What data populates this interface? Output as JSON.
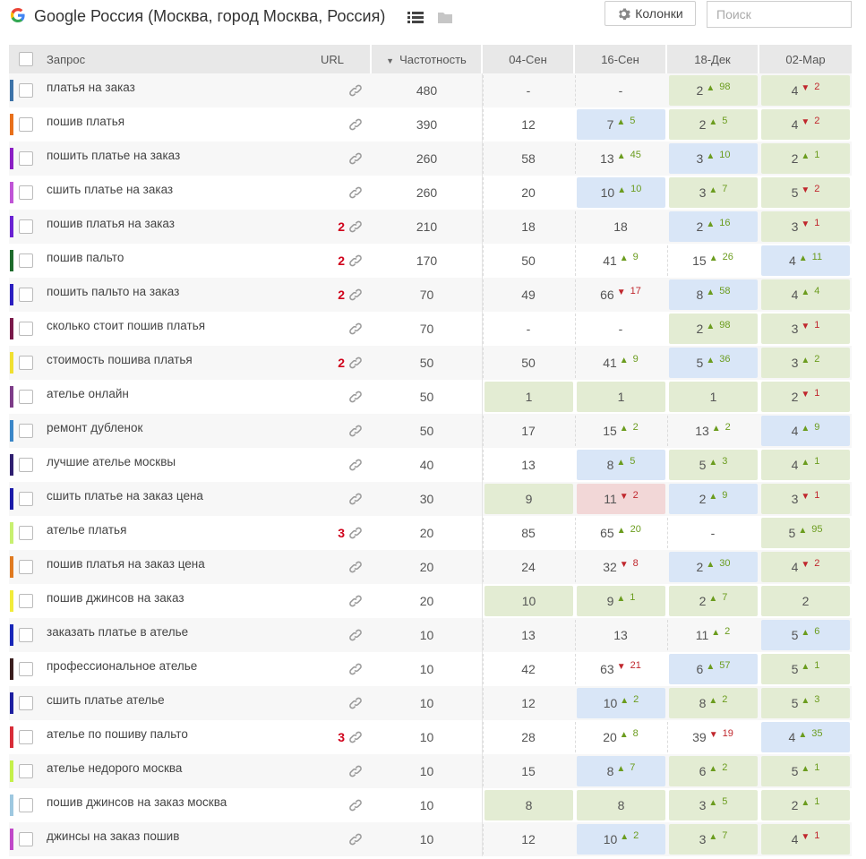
{
  "header": {
    "title": "Google Россия (Москва, город Москва, Россия)",
    "columns_button": "Колонки",
    "search_placeholder": "Поиск"
  },
  "colors": {
    "up": "#6b9c1e",
    "down": "#c0272d",
    "green_bg": "#e3ecd3",
    "blue_bg": "#d9e6f7",
    "red_bg": "#f2d7d7",
    "url_count": "#d0021b"
  },
  "table": {
    "headers": {
      "query": "Запрос",
      "url": "URL",
      "freq": "Частотность",
      "sort_icon": "▼",
      "dates": [
        "04-Сен",
        "16-Сен",
        "18-Дек",
        "02-Мар"
      ]
    },
    "rows": [
      {
        "q": "платья на заказ",
        "color": "#3d73a8",
        "url": "",
        "freq": "480",
        "c": [
          {
            "v": "-",
            "bg": "",
            "d": "",
            "t": ""
          },
          {
            "v": "-",
            "bg": "",
            "d": "",
            "t": ""
          },
          {
            "v": "2",
            "bg": "green",
            "d": "up",
            "t": "98"
          },
          {
            "v": "4",
            "bg": "green",
            "d": "dn",
            "t": "2"
          }
        ]
      },
      {
        "q": "пошив платья",
        "color": "#e8701a",
        "url": "",
        "freq": "390",
        "c": [
          {
            "v": "12",
            "bg": "",
            "d": "",
            "t": ""
          },
          {
            "v": "7",
            "bg": "blue",
            "d": "up",
            "t": "5"
          },
          {
            "v": "2",
            "bg": "green",
            "d": "up",
            "t": "5"
          },
          {
            "v": "4",
            "bg": "green",
            "d": "dn",
            "t": "2"
          }
        ]
      },
      {
        "q": "пошить платье на заказ",
        "color": "#8b1fc4",
        "url": "",
        "freq": "260",
        "c": [
          {
            "v": "58",
            "bg": "",
            "d": "",
            "t": ""
          },
          {
            "v": "13",
            "bg": "",
            "d": "up",
            "t": "45"
          },
          {
            "v": "3",
            "bg": "blue",
            "d": "up",
            "t": "10"
          },
          {
            "v": "2",
            "bg": "green",
            "d": "up",
            "t": "1"
          }
        ]
      },
      {
        "q": "сшить платье на заказ",
        "color": "#c055d6",
        "url": "",
        "freq": "260",
        "c": [
          {
            "v": "20",
            "bg": "",
            "d": "",
            "t": ""
          },
          {
            "v": "10",
            "bg": "blue",
            "d": "up",
            "t": "10"
          },
          {
            "v": "3",
            "bg": "green",
            "d": "up",
            "t": "7"
          },
          {
            "v": "5",
            "bg": "green",
            "d": "dn",
            "t": "2"
          }
        ]
      },
      {
        "q": "пошив платья на заказ",
        "color": "#6a21d2",
        "url": "2",
        "freq": "210",
        "c": [
          {
            "v": "18",
            "bg": "",
            "d": "",
            "t": ""
          },
          {
            "v": "18",
            "bg": "",
            "d": "",
            "t": ""
          },
          {
            "v": "2",
            "bg": "blue",
            "d": "up",
            "t": "16"
          },
          {
            "v": "3",
            "bg": "green",
            "d": "dn",
            "t": "1"
          }
        ]
      },
      {
        "q": "пошив пальто",
        "color": "#1e6b2c",
        "url": "2",
        "freq": "170",
        "c": [
          {
            "v": "50",
            "bg": "",
            "d": "",
            "t": ""
          },
          {
            "v": "41",
            "bg": "",
            "d": "up",
            "t": "9"
          },
          {
            "v": "15",
            "bg": "",
            "d": "up",
            "t": "26"
          },
          {
            "v": "4",
            "bg": "blue",
            "d": "up",
            "t": "11"
          }
        ]
      },
      {
        "q": "пошить пальто на заказ",
        "color": "#2b1ec0",
        "url": "2",
        "freq": "70",
        "c": [
          {
            "v": "49",
            "bg": "",
            "d": "",
            "t": ""
          },
          {
            "v": "66",
            "bg": "",
            "d": "dn",
            "t": "17"
          },
          {
            "v": "8",
            "bg": "blue",
            "d": "up",
            "t": "58"
          },
          {
            "v": "4",
            "bg": "green",
            "d": "up",
            "t": "4"
          }
        ]
      },
      {
        "q": "сколько стоит пошив платья",
        "color": "#7a1a4a",
        "url": "",
        "freq": "70",
        "c": [
          {
            "v": "-",
            "bg": "",
            "d": "",
            "t": ""
          },
          {
            "v": "-",
            "bg": "",
            "d": "",
            "t": ""
          },
          {
            "v": "2",
            "bg": "green",
            "d": "up",
            "t": "98"
          },
          {
            "v": "3",
            "bg": "green",
            "d": "dn",
            "t": "1"
          }
        ]
      },
      {
        "q": "стоимость пошива платья",
        "color": "#f0e030",
        "url": "2",
        "freq": "50",
        "c": [
          {
            "v": "50",
            "bg": "",
            "d": "",
            "t": ""
          },
          {
            "v": "41",
            "bg": "",
            "d": "up",
            "t": "9"
          },
          {
            "v": "5",
            "bg": "blue",
            "d": "up",
            "t": "36"
          },
          {
            "v": "3",
            "bg": "green",
            "d": "up",
            "t": "2"
          }
        ]
      },
      {
        "q": "ателье онлайн",
        "color": "#7d3c88",
        "url": "",
        "freq": "50",
        "c": [
          {
            "v": "1",
            "bg": "green",
            "d": "",
            "t": ""
          },
          {
            "v": "1",
            "bg": "green",
            "d": "",
            "t": ""
          },
          {
            "v": "1",
            "bg": "green",
            "d": "",
            "t": ""
          },
          {
            "v": "2",
            "bg": "green",
            "d": "dn",
            "t": "1"
          }
        ]
      },
      {
        "q": "ремонт дубленок",
        "color": "#3a86c8",
        "url": "",
        "freq": "50",
        "c": [
          {
            "v": "17",
            "bg": "",
            "d": "",
            "t": ""
          },
          {
            "v": "15",
            "bg": "",
            "d": "up",
            "t": "2"
          },
          {
            "v": "13",
            "bg": "",
            "d": "up",
            "t": "2"
          },
          {
            "v": "4",
            "bg": "blue",
            "d": "up",
            "t": "9"
          }
        ]
      },
      {
        "q": "лучшие ателье москвы",
        "color": "#2f1f70",
        "url": "",
        "freq": "40",
        "c": [
          {
            "v": "13",
            "bg": "",
            "d": "",
            "t": ""
          },
          {
            "v": "8",
            "bg": "blue",
            "d": "up",
            "t": "5"
          },
          {
            "v": "5",
            "bg": "green",
            "d": "up",
            "t": "3"
          },
          {
            "v": "4",
            "bg": "green",
            "d": "up",
            "t": "1"
          }
        ]
      },
      {
        "q": "сшить платье на заказ цена",
        "color": "#1a1aa8",
        "url": "",
        "freq": "30",
        "c": [
          {
            "v": "9",
            "bg": "green",
            "d": "",
            "t": ""
          },
          {
            "v": "11",
            "bg": "red",
            "d": "dn",
            "t": "2"
          },
          {
            "v": "2",
            "bg": "blue",
            "d": "up",
            "t": "9"
          },
          {
            "v": "3",
            "bg": "green",
            "d": "dn",
            "t": "1"
          }
        ]
      },
      {
        "q": "ателье платья",
        "color": "#c8f070",
        "url": "3",
        "freq": "20",
        "c": [
          {
            "v": "85",
            "bg": "",
            "d": "",
            "t": ""
          },
          {
            "v": "65",
            "bg": "",
            "d": "up",
            "t": "20"
          },
          {
            "v": "-",
            "bg": "",
            "d": "",
            "t": ""
          },
          {
            "v": "5",
            "bg": "green",
            "d": "up",
            "t": "95"
          }
        ]
      },
      {
        "q": "пошив платья на заказ цена",
        "color": "#e07a20",
        "url": "",
        "freq": "20",
        "c": [
          {
            "v": "24",
            "bg": "",
            "d": "",
            "t": ""
          },
          {
            "v": "32",
            "bg": "",
            "d": "dn",
            "t": "8"
          },
          {
            "v": "2",
            "bg": "blue",
            "d": "up",
            "t": "30"
          },
          {
            "v": "4",
            "bg": "green",
            "d": "dn",
            "t": "2"
          }
        ]
      },
      {
        "q": "пошив джинсов на заказ",
        "color": "#f2ec3a",
        "url": "",
        "freq": "20",
        "c": [
          {
            "v": "10",
            "bg": "green",
            "d": "",
            "t": ""
          },
          {
            "v": "9",
            "bg": "green",
            "d": "up",
            "t": "1"
          },
          {
            "v": "2",
            "bg": "green",
            "d": "up",
            "t": "7"
          },
          {
            "v": "2",
            "bg": "green",
            "d": "",
            "t": ""
          }
        ]
      },
      {
        "q": "заказать платье в ателье",
        "color": "#1826b8",
        "url": "",
        "freq": "10",
        "c": [
          {
            "v": "13",
            "bg": "",
            "d": "",
            "t": ""
          },
          {
            "v": "13",
            "bg": "",
            "d": "",
            "t": ""
          },
          {
            "v": "11",
            "bg": "",
            "d": "up",
            "t": "2"
          },
          {
            "v": "5",
            "bg": "blue",
            "d": "up",
            "t": "6"
          }
        ]
      },
      {
        "q": "профессиональное ателье",
        "color": "#3a1e1e",
        "url": "",
        "freq": "10",
        "c": [
          {
            "v": "42",
            "bg": "",
            "d": "",
            "t": ""
          },
          {
            "v": "63",
            "bg": "",
            "d": "dn",
            "t": "21"
          },
          {
            "v": "6",
            "bg": "blue",
            "d": "up",
            "t": "57"
          },
          {
            "v": "5",
            "bg": "green",
            "d": "up",
            "t": "1"
          }
        ]
      },
      {
        "q": "сшить платье ателье",
        "color": "#1d1fa0",
        "url": "",
        "freq": "10",
        "c": [
          {
            "v": "12",
            "bg": "",
            "d": "",
            "t": ""
          },
          {
            "v": "10",
            "bg": "blue",
            "d": "up",
            "t": "2"
          },
          {
            "v": "8",
            "bg": "green",
            "d": "up",
            "t": "2"
          },
          {
            "v": "5",
            "bg": "green",
            "d": "up",
            "t": "3"
          }
        ]
      },
      {
        "q": "ателье по пошиву пальто",
        "color": "#d82d38",
        "url": "3",
        "freq": "10",
        "c": [
          {
            "v": "28",
            "bg": "",
            "d": "",
            "t": ""
          },
          {
            "v": "20",
            "bg": "",
            "d": "up",
            "t": "8"
          },
          {
            "v": "39",
            "bg": "",
            "d": "dn",
            "t": "19"
          },
          {
            "v": "4",
            "bg": "blue",
            "d": "up",
            "t": "35"
          }
        ]
      },
      {
        "q": "ателье недорого москва",
        "color": "#c5f04a",
        "url": "",
        "freq": "10",
        "c": [
          {
            "v": "15",
            "bg": "",
            "d": "",
            "t": ""
          },
          {
            "v": "8",
            "bg": "blue",
            "d": "up",
            "t": "7"
          },
          {
            "v": "6",
            "bg": "green",
            "d": "up",
            "t": "2"
          },
          {
            "v": "5",
            "bg": "green",
            "d": "up",
            "t": "1"
          }
        ]
      },
      {
        "q": "пошив джинсов на заказ москва",
        "color": "#9ec8e0",
        "url": "",
        "freq": "10",
        "c": [
          {
            "v": "8",
            "bg": "green",
            "d": "",
            "t": ""
          },
          {
            "v": "8",
            "bg": "green",
            "d": "",
            "t": ""
          },
          {
            "v": "3",
            "bg": "green",
            "d": "up",
            "t": "5"
          },
          {
            "v": "2",
            "bg": "green",
            "d": "up",
            "t": "1"
          }
        ]
      },
      {
        "q": "джинсы на заказ пошив",
        "color": "#c048c8",
        "url": "",
        "freq": "10",
        "c": [
          {
            "v": "12",
            "bg": "",
            "d": "",
            "t": ""
          },
          {
            "v": "10",
            "bg": "blue",
            "d": "up",
            "t": "2"
          },
          {
            "v": "3",
            "bg": "green",
            "d": "up",
            "t": "7"
          },
          {
            "v": "4",
            "bg": "green",
            "d": "dn",
            "t": "1"
          }
        ]
      }
    ]
  }
}
